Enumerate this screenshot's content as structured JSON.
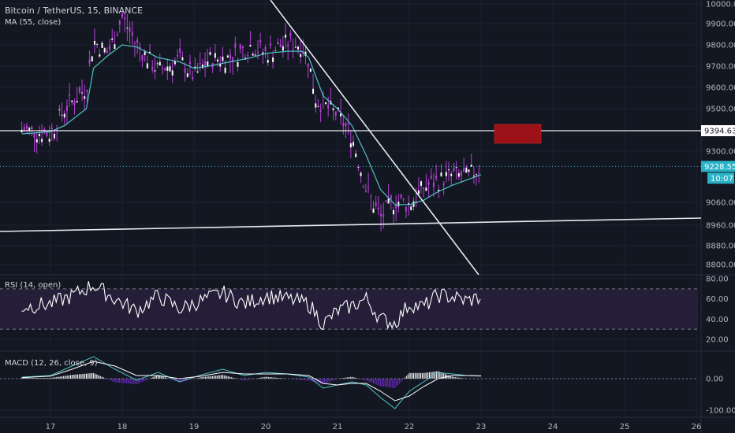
{
  "legend": {
    "symbol": "Bitcoin / TetherUS, 15, BINANCE",
    "ma": "MA (55, close)",
    "rsi": "RSI (14, open)",
    "macd": "MACD (12, 26, close, 9)"
  },
  "price_axis": {
    "ticks": [
      "10000.00",
      "9900.00",
      "9800.00",
      "9700.00",
      "9600.00",
      "9500.00",
      "9300.00",
      "9060.00",
      "8960.00",
      "8880.00",
      "8800.00"
    ],
    "level_label": "9394.63",
    "last_price_label": "9228.55",
    "countdown_label": "10:07"
  },
  "rsi_axis": {
    "ticks": [
      "80.00",
      "60.00",
      "40.00",
      "20.00"
    ]
  },
  "macd_axis": {
    "ticks": [
      "0.00",
      "-100.00"
    ]
  },
  "time_axis": {
    "ticks": [
      "17",
      "18",
      "19",
      "20",
      "21",
      "22",
      "23",
      "24",
      "25",
      "26"
    ]
  },
  "colors": {
    "background": "#131722",
    "candle": "#b53fd6",
    "ma": "#4ec2c5",
    "trendline": "#e7e9ee",
    "level": "#f0f0f0",
    "last_price": "#2ab3c7",
    "box": "#9b1117",
    "rsi_band": "#2a2140",
    "rsi_line": "#ffffff",
    "macd_line": "#4ec2c5",
    "signal_line": "#ffffff"
  },
  "chart_data": {
    "type": "line",
    "title": "Bitcoin / TetherUS, 15, BINANCE",
    "x": [
      "16.6",
      "17.0",
      "17.2",
      "17.5",
      "17.6",
      "17.8",
      "18.0",
      "18.2",
      "18.5",
      "18.8",
      "19.0",
      "19.2",
      "19.5",
      "19.8",
      "20.0",
      "20.3",
      "20.5",
      "20.6",
      "20.7",
      "20.8",
      "21.0",
      "21.2",
      "21.4",
      "21.6",
      "21.8",
      "22.0",
      "22.2",
      "22.4",
      "22.6",
      "22.8",
      "23.0"
    ],
    "series": [
      {
        "name": "Bitcoin / TetherUS",
        "values": [
          9400,
          9380,
          9500,
          9600,
          9820,
          9760,
          9930,
          9800,
          9680,
          9730,
          9650,
          9730,
          9740,
          9800,
          9760,
          9810,
          9800,
          9720,
          9540,
          9520,
          9470,
          9370,
          9120,
          8990,
          9070,
          9050,
          9130,
          9160,
          9190,
          9180,
          9228
        ]
      },
      {
        "name": "MA (55, close)",
        "values": [
          9380,
          9390,
          9420,
          9500,
          9690,
          9750,
          9800,
          9790,
          9740,
          9720,
          9690,
          9700,
          9720,
          9740,
          9760,
          9770,
          9770,
          9740,
          9650,
          9560,
          9500,
          9420,
          9280,
          9120,
          9050,
          9050,
          9070,
          9110,
          9140,
          9165,
          9190
        ]
      }
    ],
    "levels": {
      "horizontal": 9394.63,
      "last_price": 9228.55
    },
    "indicators": {
      "rsi": {
        "name": "RSI (14, open)",
        "x": [
          "16.6",
          "17.0",
          "17.3",
          "17.6",
          "17.9",
          "18.2",
          "18.5",
          "18.8",
          "19.1",
          "19.4",
          "19.7",
          "20.0",
          "20.3",
          "20.6",
          "20.8",
          "21.0",
          "21.2",
          "21.4",
          "21.6",
          "21.8",
          "22.0",
          "22.2",
          "22.4",
          "22.6",
          "22.8",
          "23.0"
        ],
        "values": [
          52,
          55,
          63,
          74,
          60,
          48,
          63,
          50,
          58,
          66,
          55,
          63,
          60,
          55,
          35,
          48,
          53,
          60,
          40,
          36,
          55,
          52,
          64,
          62,
          58,
          62
        ],
        "ylim": [
          20,
          80
        ]
      },
      "macd": {
        "name": "MACD (12, 26, close, 9)",
        "x": [
          "16.6",
          "17.0",
          "17.3",
          "17.6",
          "17.9",
          "18.2",
          "18.5",
          "18.8",
          "19.1",
          "19.4",
          "19.7",
          "20.0",
          "20.3",
          "20.6",
          "20.8",
          "21.0",
          "21.2",
          "21.4",
          "21.6",
          "21.8",
          "22.0",
          "22.2",
          "22.4",
          "22.6",
          "22.8",
          "23.0"
        ],
        "macd": [
          5,
          10,
          40,
          70,
          30,
          -5,
          20,
          -10,
          12,
          30,
          10,
          20,
          15,
          5,
          -30,
          -20,
          -10,
          -20,
          -60,
          -95,
          -40,
          -10,
          20,
          15,
          10,
          8
        ],
        "signal": [
          3,
          8,
          30,
          55,
          40,
          10,
          10,
          0,
          8,
          20,
          15,
          15,
          15,
          10,
          -15,
          -20,
          -15,
          -15,
          -40,
          -70,
          -55,
          -25,
          0,
          10,
          10,
          9
        ],
        "ylim": [
          -100,
          50
        ]
      }
    },
    "xlabel": "",
    "ylabel": "",
    "ylim": [
      8760,
      10020
    ],
    "xlim": [
      16.55,
      26.4
    ]
  }
}
